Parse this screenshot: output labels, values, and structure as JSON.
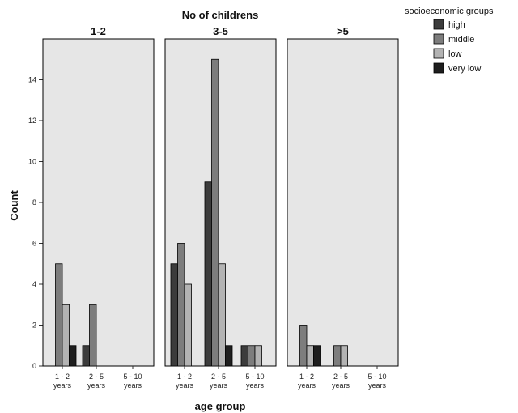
{
  "chart_data": {
    "type": "bar",
    "title": "No of childrens",
    "xlabel": "age group",
    "ylabel": "Count",
    "ylim": [
      0,
      16
    ],
    "yticks": [
      "0",
      "2",
      "4",
      "6",
      "8",
      "10",
      "12",
      "14"
    ],
    "categories": [
      {
        "line1": "1 - 2",
        "line2": "years"
      },
      {
        "line1": "2 - 5",
        "line2": "years"
      },
      {
        "line1": "5 - 10",
        "line2": "years"
      }
    ],
    "legend": {
      "title": "socioeconomic groups",
      "placement": "top-right",
      "entries": [
        "high",
        "middle",
        "low",
        "very low"
      ]
    },
    "series_colors": [
      "#3c3c3c",
      "#7d7d7d",
      "#b3b3b3",
      "#1e1e1e"
    ],
    "panels": [
      {
        "label": "1-2",
        "series": [
          {
            "name": "high",
            "values": [
              0,
              1,
              0
            ]
          },
          {
            "name": "middle",
            "values": [
              5,
              3,
              0
            ]
          },
          {
            "name": "low",
            "values": [
              3,
              0,
              0
            ]
          },
          {
            "name": "very low",
            "values": [
              1,
              0,
              0
            ]
          }
        ]
      },
      {
        "label": "3-5",
        "series": [
          {
            "name": "high",
            "values": [
              5,
              9,
              1
            ]
          },
          {
            "name": "middle",
            "values": [
              6,
              15,
              1
            ]
          },
          {
            "name": "low",
            "values": [
              4,
              5,
              1
            ]
          },
          {
            "name": "very low",
            "values": [
              0,
              1,
              0
            ]
          }
        ]
      },
      {
        "label": ">5",
        "series": [
          {
            "name": "high",
            "values": [
              0,
              0,
              0
            ]
          },
          {
            "name": "middle",
            "values": [
              2,
              1,
              0
            ]
          },
          {
            "name": "low",
            "values": [
              1,
              1,
              0
            ]
          },
          {
            "name": "very low",
            "values": [
              1,
              0,
              0
            ]
          }
        ]
      }
    ],
    "grid": false,
    "panel_background": "#e6e6e6"
  }
}
